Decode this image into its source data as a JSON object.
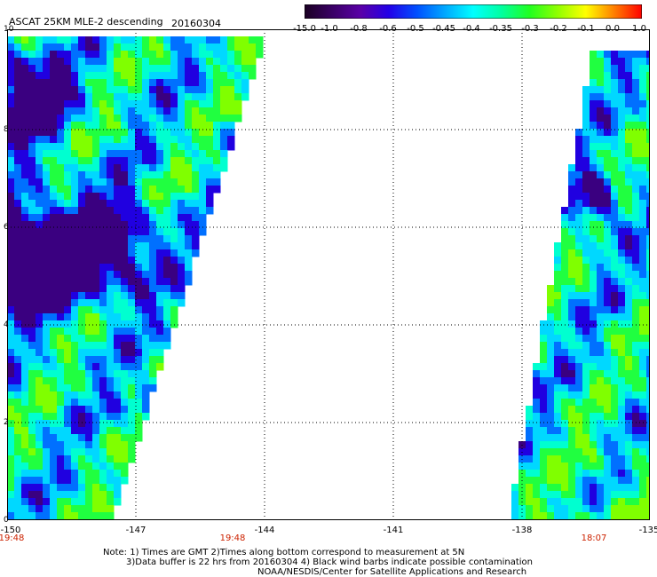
{
  "title": "ASCAT 25KM MLE-2 descending",
  "date": "20160304",
  "colorbar": {
    "labels": [
      "-15.0",
      "-1.0",
      "-0.8",
      "-0.6",
      "-0.5",
      "-0.45",
      "-0.4",
      "-0.35",
      "-0.3",
      "-0.2",
      "-0.1",
      "0.0",
      "1.0"
    ],
    "colors": [
      "#1a0022",
      "#3a0066",
      "#5a00a8",
      "#2200e8",
      "#0050ff",
      "#00a8ff",
      "#00ffff",
      "#00ffa0",
      "#20ff20",
      "#90ff00",
      "#ffff00",
      "#ff8000",
      "#ff0000"
    ]
  },
  "map": {
    "x_ticks": [
      "-150",
      "-147",
      "-144",
      "-141",
      "-138",
      "-135"
    ],
    "y_ticks": [
      "0",
      "2",
      "4",
      "6",
      "8",
      "10"
    ],
    "times": [
      "19:48",
      "19:48",
      "18:07"
    ],
    "lon_range": [
      -150,
      -135
    ],
    "lat_range": [
      0,
      10
    ],
    "grid": true
  },
  "notes": [
    "Note: 1) Times are GMT 2)Times along bottom correspond to measurement at 5N",
    "3)Data buffer is 22 hrs from 20160304 4) Black wind barbs indicate possible contamination",
    "NOAA/NESDIS/Center for Satellite Applications and Research"
  ]
}
